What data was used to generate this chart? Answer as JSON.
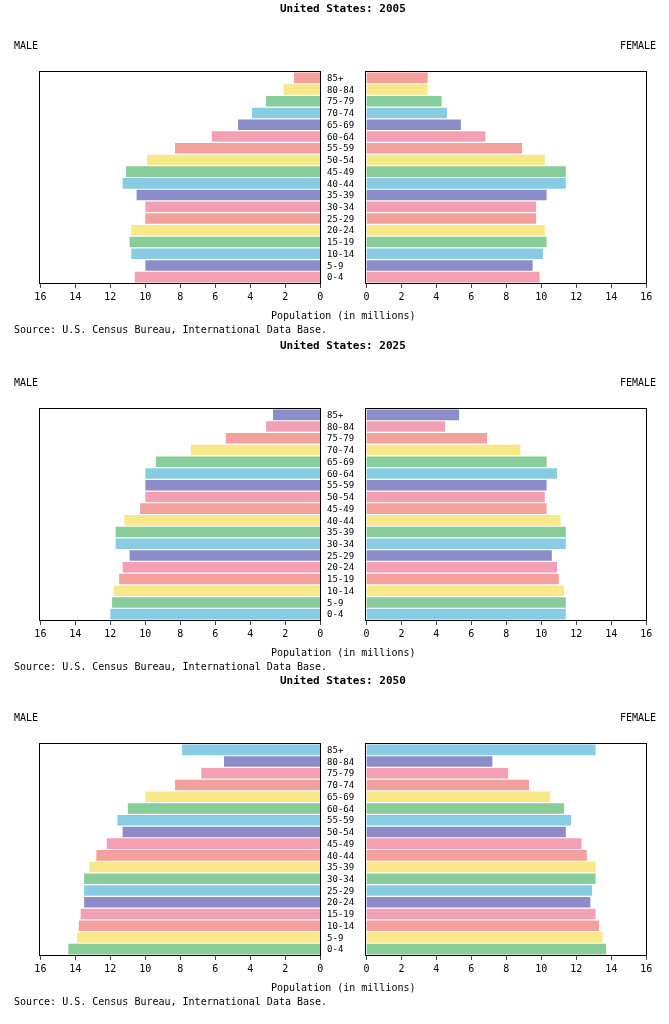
{
  "chart_data": [
    {
      "type": "bar",
      "orientation": "horizontal",
      "title": "United States: 2005",
      "subtitle": "MALE",
      "xlabel": "Population (in millions)",
      "categories": [
        "85+",
        "80-84",
        "75-79",
        "70-74",
        "65-69",
        "60-64",
        "55-59",
        "50-54",
        "45-49",
        "40-44",
        "35-39",
        "30-34",
        "25-29",
        "20-24",
        "15-19",
        "10-14",
        "5-9",
        "0-4"
      ],
      "values": [
        1.5,
        2.1,
        3.1,
        3.9,
        4.7,
        6.2,
        8.3,
        9.9,
        11.1,
        11.3,
        10.5,
        10.0,
        10.0,
        10.8,
        10.9,
        10.8,
        10.0,
        10.6
      ],
      "colors": [
        "#f4a09c",
        "#f8e888",
        "#88cc99",
        "#88cce4",
        "#8c8cc8",
        "#f4a0b4",
        "#f4a09c",
        "#f8e888",
        "#88cc99",
        "#88cce4",
        "#8c8cc8",
        "#f4a0b4",
        "#f4a09c",
        "#f8e888",
        "#88cc99",
        "#88cce4",
        "#8c8cc8",
        "#f4a0b4"
      ],
      "xlim": [
        16,
        0
      ],
      "xticks": [
        16,
        14,
        12,
        10,
        8,
        6,
        4,
        2,
        0
      ]
    },
    {
      "type": "bar",
      "orientation": "horizontal",
      "subtitle": "FEMALE",
      "tick_labels": "x",
      "annotations": [
        "Source: U.S. Census Bureau, International Data Base."
      ],
      "categories": [
        null,
        null,
        null,
        null,
        null,
        null,
        null,
        null,
        null,
        null,
        null,
        null,
        null,
        null,
        null,
        null,
        null,
        null
      ],
      "values": [
        3.5,
        3.5,
        4.3,
        4.6,
        5.4,
        6.8,
        8.9,
        10.2,
        11.4,
        11.4,
        10.3,
        9.7,
        9.7,
        10.2,
        10.3,
        10.1,
        9.5,
        9.9
      ],
      "colors": [
        "#f4a09c",
        "#f8e888",
        "#88cc99",
        "#88cce4",
        "#8c8cc8",
        "#f4a0b4",
        "#f4a09c",
        "#f8e888",
        "#88cc99",
        "#88cce4",
        "#8c8cc8",
        "#f4a0b4",
        "#f4a09c",
        "#f8e888",
        "#88cc99",
        "#88cce4",
        "#8c8cc8",
        "#f4a0b4"
      ],
      "xlim": [
        0,
        16
      ],
      "xticks": [
        0,
        2,
        4,
        6,
        8,
        10,
        12,
        14,
        16
      ]
    },
    {
      "type": "bar",
      "orientation": "horizontal",
      "title": "United States: 2025",
      "subtitle": "MALE",
      "xlabel": "Population (in millions)",
      "categories": [
        "85+",
        "80-84",
        "75-79",
        "70-74",
        "65-69",
        "60-64",
        "55-59",
        "50-54",
        "45-49",
        "40-44",
        "35-39",
        "30-34",
        "25-29",
        "20-24",
        "15-19",
        "10-14",
        "5-9",
        "0-4"
      ],
      "values": [
        2.7,
        3.1,
        5.4,
        7.4,
        9.4,
        10.0,
        10.0,
        10.0,
        10.3,
        11.2,
        11.7,
        11.7,
        10.9,
        11.3,
        11.5,
        11.8,
        11.9,
        12.0
      ],
      "colors": [
        "#8c8cc8",
        "#f4a0b4",
        "#f4a09c",
        "#f8e888",
        "#88cc99",
        "#88cce4",
        "#8c8cc8",
        "#f4a0b4",
        "#f4a09c",
        "#f8e888",
        "#88cc99",
        "#88cce4",
        "#8c8cc8",
        "#f4a0b4",
        "#f4a09c",
        "#f8e888",
        "#88cc99",
        "#88cce4"
      ],
      "xlim": [
        16,
        0
      ],
      "xticks": [
        16,
        14,
        12,
        10,
        8,
        6,
        4,
        2,
        0
      ]
    },
    {
      "type": "bar",
      "orientation": "horizontal",
      "subtitle": "FEMALE",
      "tick_labels": "x",
      "annotations": [
        "Source: U.S. Census Bureau, International Data Base."
      ],
      "categories": [
        null,
        null,
        null,
        null,
        null,
        null,
        null,
        null,
        null,
        null,
        null,
        null,
        null,
        null,
        null,
        null,
        null,
        null
      ],
      "values": [
        5.3,
        4.5,
        6.9,
        8.8,
        10.3,
        10.9,
        10.3,
        10.2,
        10.3,
        11.1,
        11.4,
        11.4,
        10.6,
        10.9,
        11.0,
        11.3,
        11.4,
        11.4
      ],
      "colors": [
        "#8c8cc8",
        "#f4a0b4",
        "#f4a09c",
        "#f8e888",
        "#88cc99",
        "#88cce4",
        "#8c8cc8",
        "#f4a0b4",
        "#f4a09c",
        "#f8e888",
        "#88cc99",
        "#88cce4",
        "#8c8cc8",
        "#f4a0b4",
        "#f4a09c",
        "#f8e888",
        "#88cc99",
        "#88cce4"
      ],
      "xlim": [
        0,
        16
      ],
      "xticks": [
        0,
        2,
        4,
        6,
        8,
        10,
        12,
        14,
        16
      ]
    },
    {
      "type": "bar",
      "orientation": "horizontal",
      "title": "United States: 2050",
      "subtitle": "MALE",
      "xlabel": "Population (in millions)",
      "categories": [
        "85+",
        "80-84",
        "75-79",
        "70-74",
        "65-69",
        "60-64",
        "55-59",
        "50-54",
        "45-49",
        "40-44",
        "35-39",
        "30-34",
        "25-29",
        "20-24",
        "15-19",
        "10-14",
        "5-9",
        "0-4"
      ],
      "values": [
        7.9,
        5.5,
        6.8,
        8.3,
        10.0,
        11.0,
        11.6,
        11.3,
        12.2,
        12.8,
        13.2,
        13.5,
        13.5,
        13.5,
        13.7,
        13.8,
        13.9,
        14.4
      ],
      "colors": [
        "#88cce4",
        "#8c8cc8",
        "#f4a0b4",
        "#f4a09c",
        "#f8e888",
        "#88cc99",
        "#88cce4",
        "#8c8cc8",
        "#f4a0b4",
        "#f4a09c",
        "#f8e888",
        "#88cc99",
        "#88cce4",
        "#8c8cc8",
        "#f4a0b4",
        "#f4a09c",
        "#f8e888",
        "#88cc99"
      ],
      "xlim": [
        16,
        0
      ],
      "xticks": [
        16,
        14,
        12,
        10,
        8,
        6,
        4,
        2,
        0
      ]
    },
    {
      "type": "bar",
      "orientation": "horizontal",
      "subtitle": "FEMALE",
      "tick_labels": "x",
      "annotations": [
        "Source: U.S. Census Bureau, International Data Base."
      ],
      "categories": [
        null,
        null,
        null,
        null,
        null,
        null,
        null,
        null,
        null,
        null,
        null,
        null,
        null,
        null,
        null,
        null,
        null,
        null
      ],
      "values": [
        13.1,
        7.2,
        8.1,
        9.3,
        10.5,
        11.3,
        11.7,
        11.4,
        12.3,
        12.6,
        13.1,
        13.1,
        12.9,
        12.8,
        13.1,
        13.3,
        13.5,
        13.7
      ],
      "colors": [
        "#88cce4",
        "#8c8cc8",
        "#f4a0b4",
        "#f4a09c",
        "#f8e888",
        "#88cc99",
        "#88cce4",
        "#8c8cc8",
        "#f4a0b4",
        "#f4a09c",
        "#f8e888",
        "#88cc99",
        "#88cce4",
        "#8c8cc8",
        "#f4a0b4",
        "#f4a09c",
        "#f8e888",
        "#88cc99"
      ],
      "xlim": [
        0,
        16
      ],
      "xticks": [
        0,
        2,
        4,
        6,
        8,
        10,
        12,
        14,
        16
      ]
    }
  ]
}
